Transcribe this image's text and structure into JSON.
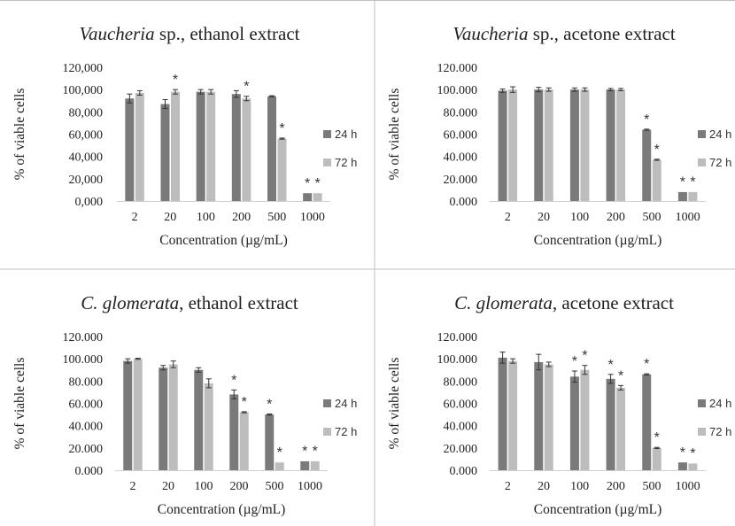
{
  "colors": {
    "series_24h": "#7a7a7a",
    "series_72h": "#bdbdbd",
    "error_bar": "#333333",
    "panel_border": "#bfbfbf"
  },
  "chart_data": [
    {
      "type": "bar",
      "title_italic": "Vaucheria",
      "title_rest": " sp., ethanol extract",
      "xlabel": "Concentration (µg/mL)",
      "ylabel": "% of viable cells",
      "ylim": [
        0,
        120
      ],
      "yticks": [
        "0,000",
        "20,000",
        "40,000",
        "60,000",
        "80,000",
        "100,000",
        "120,000"
      ],
      "categories": [
        "2",
        "20",
        "100",
        "200",
        "500",
        "1000"
      ],
      "series": [
        {
          "name": "24 h",
          "values": [
            92,
            87,
            98,
            96,
            94,
            7
          ],
          "errors": [
            4,
            4,
            2,
            3,
            0.5,
            0.3
          ],
          "stars": [
            "",
            "",
            "",
            "",
            "",
            "*"
          ]
        },
        {
          "name": "72 h",
          "values": [
            97,
            98,
            98,
            92,
            56,
            7
          ],
          "errors": [
            2,
            2,
            2,
            2,
            0.5,
            0.3
          ],
          "stars": [
            "",
            "*",
            "",
            "*",
            "*",
            "*"
          ]
        }
      ],
      "legend": "right"
    },
    {
      "type": "bar",
      "title_italic": "Vaucheria",
      "title_rest": " sp., acetone extract",
      "xlabel": "Concentration (µg/mL)",
      "ylabel": "% of viable cells",
      "ylim": [
        0,
        120
      ],
      "yticks": [
        "0.000",
        "20.000",
        "40.000",
        "60.000",
        "80.000",
        "100.000",
        "120.000"
      ],
      "categories": [
        "2",
        "20",
        "100",
        "200",
        "500",
        "1000"
      ],
      "series": [
        {
          "name": "24 h",
          "values": [
            99,
            100,
            100,
            100,
            64,
            8
          ],
          "errors": [
            1.5,
            2,
            1.5,
            1,
            0.5,
            0.3
          ],
          "stars": [
            "",
            "",
            "",
            "",
            "*",
            "*"
          ]
        },
        {
          "name": "72 h",
          "values": [
            100,
            100,
            100,
            100,
            37,
            8
          ],
          "errors": [
            2.5,
            1.5,
            1.5,
            1,
            0.5,
            0.3
          ],
          "stars": [
            "",
            "",
            "",
            "",
            "*",
            "*"
          ]
        }
      ],
      "legend": "right"
    },
    {
      "type": "bar",
      "title_italic": "C. glomerata",
      "title_rest": ", ethanol extract",
      "xlabel": "Concentration (µg/mL)",
      "ylabel": "% of viable cells",
      "ylim": [
        0,
        120
      ],
      "yticks": [
        "0.000",
        "20.000",
        "40.000",
        "60.000",
        "80.000",
        "100.000",
        "120.000"
      ],
      "categories": [
        "2",
        "20",
        "100",
        "200",
        "500",
        "1000"
      ],
      "series": [
        {
          "name": "24 h",
          "values": [
            98,
            92,
            90,
            68,
            50,
            8
          ],
          "errors": [
            2,
            2,
            2,
            4,
            0.5,
            0.3
          ],
          "stars": [
            "",
            "",
            "",
            "*",
            "*",
            "*"
          ]
        },
        {
          "name": "72 h",
          "values": [
            100,
            95,
            78,
            52,
            7,
            8
          ],
          "errors": [
            0.5,
            3,
            4,
            0.5,
            0.3,
            0.3
          ],
          "stars": [
            "",
            "",
            "",
            "*",
            "*",
            "*"
          ]
        }
      ],
      "legend": "right"
    },
    {
      "type": "bar",
      "title_italic": "C. glomerata",
      "title_rest": ", acetone extract",
      "xlabel": "Concentration (µg/mL)",
      "ylabel": "% of viable cells",
      "ylim": [
        0,
        120
      ],
      "yticks": [
        "0.000",
        "20.000",
        "40.000",
        "60.000",
        "80.000",
        "100.000",
        "120.000"
      ],
      "categories": [
        "2",
        "20",
        "100",
        "200",
        "500",
        "1000"
      ],
      "series": [
        {
          "name": "24 h",
          "values": [
            101,
            97,
            84,
            82,
            86,
            7
          ],
          "errors": [
            5,
            7,
            5,
            4,
            0.5,
            0.3
          ],
          "stars": [
            "",
            "",
            "*",
            "*",
            "*",
            "*"
          ]
        },
        {
          "name": "72 h",
          "values": [
            98,
            95,
            90,
            74,
            20,
            6
          ],
          "errors": [
            2,
            2,
            4,
            2,
            0.5,
            0.3
          ],
          "stars": [
            "",
            "",
            "*",
            "*",
            "*",
            "*"
          ]
        }
      ],
      "legend": "right"
    }
  ]
}
